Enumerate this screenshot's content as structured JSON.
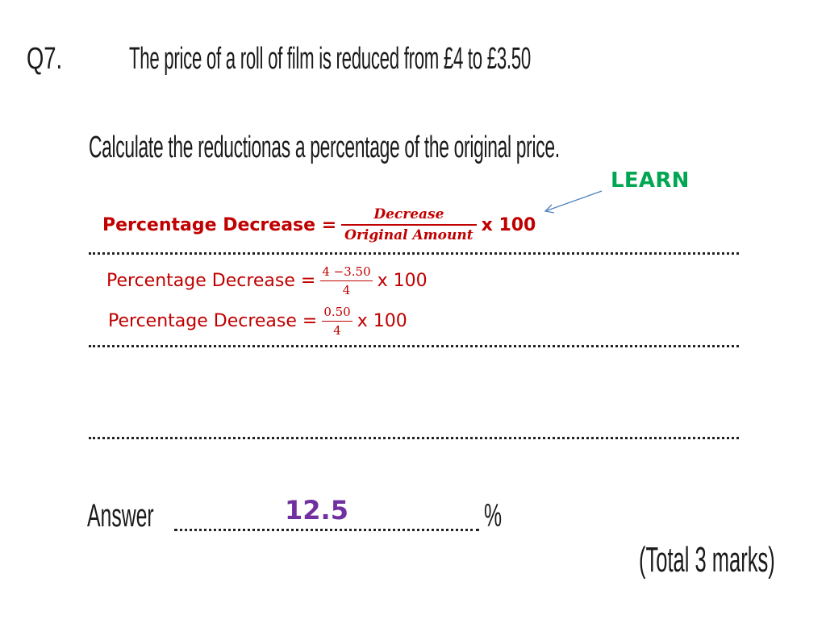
{
  "question": {
    "number": "Q7.",
    "text": "The price of a roll of film is reduced from £4 to £3.50",
    "instruction": "Calculate the reductionas a percentage of the original price."
  },
  "note": {
    "learn_label": "LEARN",
    "color": "#00a651"
  },
  "formula": {
    "rule": {
      "label": "Percentage Decrease =",
      "numerator": "Decrease",
      "denominator": "Original Amount",
      "multiplier": "x 100"
    },
    "step1": {
      "label": "Percentage Decrease =",
      "numerator": "4 −3.50",
      "denominator": "4",
      "multiplier": "x 100"
    },
    "step2": {
      "label": "Percentage Decrease =",
      "numerator": "0.50",
      "denominator": "4",
      "multiplier": "x 100"
    },
    "color": "#c00000"
  },
  "answer": {
    "label": "Answer",
    "value": "12.5",
    "unit": "%",
    "value_color": "#7030a0"
  },
  "total_marks": "(Total 3 marks)"
}
